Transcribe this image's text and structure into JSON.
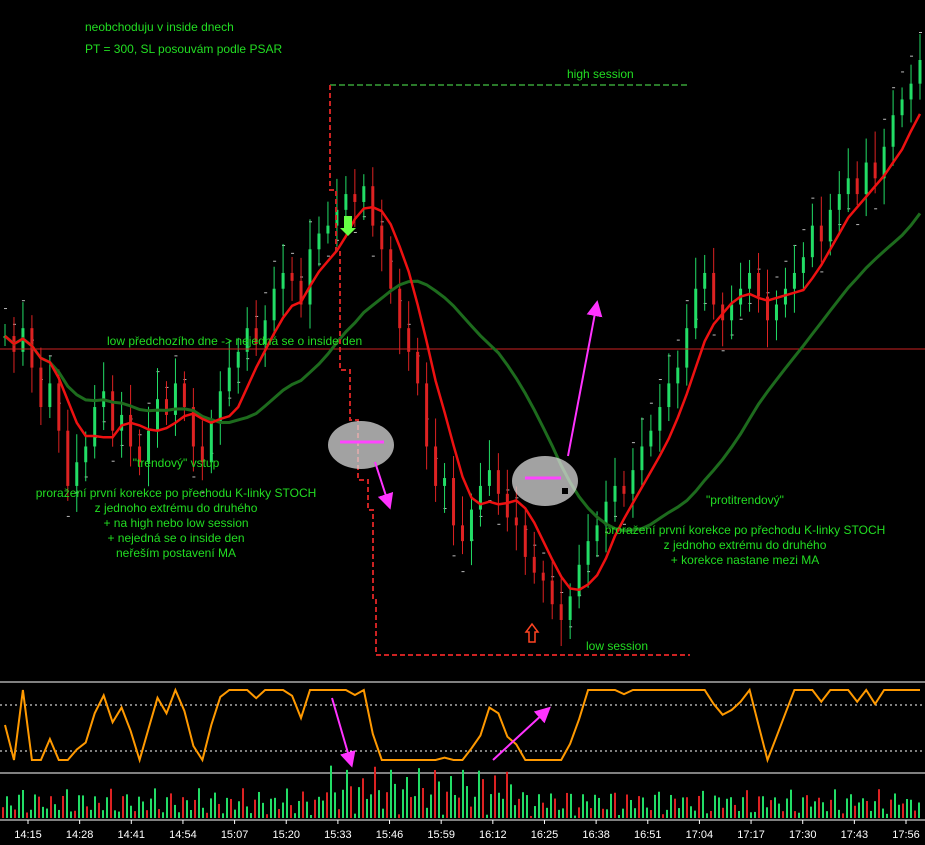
{
  "chart_data": {
    "type": "candlestick",
    "xlabel": "",
    "ylabel": "",
    "x_ticks": [
      "14:15",
      "14:28",
      "14:41",
      "14:54",
      "15:07",
      "15:20",
      "15:33",
      "15:46",
      "15:59",
      "16:12",
      "16:25",
      "16:38",
      "16:51",
      "17:04",
      "17:17",
      "17:30",
      "17:43",
      "17:56"
    ],
    "series": [
      {
        "name": "",
        "kind": "price",
        "close": [
          64,
          62,
          65,
          60,
          55,
          58,
          52,
          45,
          48,
          50,
          55,
          57,
          52,
          54,
          50,
          48,
          52,
          56,
          54,
          58,
          55,
          50,
          48,
          53,
          57,
          60,
          62,
          65,
          63,
          66,
          70,
          72,
          71,
          68,
          75,
          77,
          78,
          80,
          82,
          81,
          83,
          78,
          75,
          70,
          65,
          62,
          58,
          50,
          45,
          46,
          40,
          38,
          42,
          45,
          47,
          44,
          41,
          40,
          36,
          34,
          33,
          30,
          28,
          31,
          35,
          38,
          40,
          43,
          45,
          44,
          47,
          50,
          52,
          55,
          58,
          60,
          65,
          70,
          72,
          68,
          66,
          68,
          70,
          72,
          69,
          66,
          68,
          70,
          72,
          74,
          78,
          76,
          80,
          82,
          84,
          82,
          86,
          84,
          88,
          92,
          94,
          96,
          99
        ]
      },
      {
        "name": "",
        "kind": "fast MA (red)"
      },
      {
        "name": "",
        "kind": "slow MA (green)"
      },
      {
        "name": "",
        "kind": "stochastic",
        "range": [
          0,
          100
        ]
      }
    ],
    "annotations": {
      "note_inside_days": "neobchoduju v inside dnech",
      "note_pt_sl": "PT = 300, SL posouvám podle PSAR",
      "high_session": "high session",
      "low_session": "low session",
      "prev_day_low": "low předchozího dne -> nejedná se o inside den",
      "trend_title": "\"trendový\" vstup",
      "trend_lines": [
        "proražení první korekce po přechodu K-linky STOCH",
        "z jednoho extrému do druhého",
        "+ na high nebo low session",
        "+ nejedná se o inside den",
        "neřeším postavení MA"
      ],
      "counter_title": "\"protitrendový\"",
      "counter_lines": [
        "proražení první korekce po přechodu K-linky STOCH",
        "z jednoho extrému do druhého",
        "+ korekce nastane mezi MA"
      ]
    },
    "colors": {
      "background": "#000000",
      "up_candle": "#22dd66",
      "down_candle": "#dd2222",
      "fast_ma": "#ee1111",
      "slow_ma": "#1d6b1d",
      "stoch": "#ff9900",
      "arrows": "#ff33ff",
      "text": "#22dd22",
      "session_lines": "#cc2222",
      "high_session_line": "#2a7a2a"
    }
  }
}
